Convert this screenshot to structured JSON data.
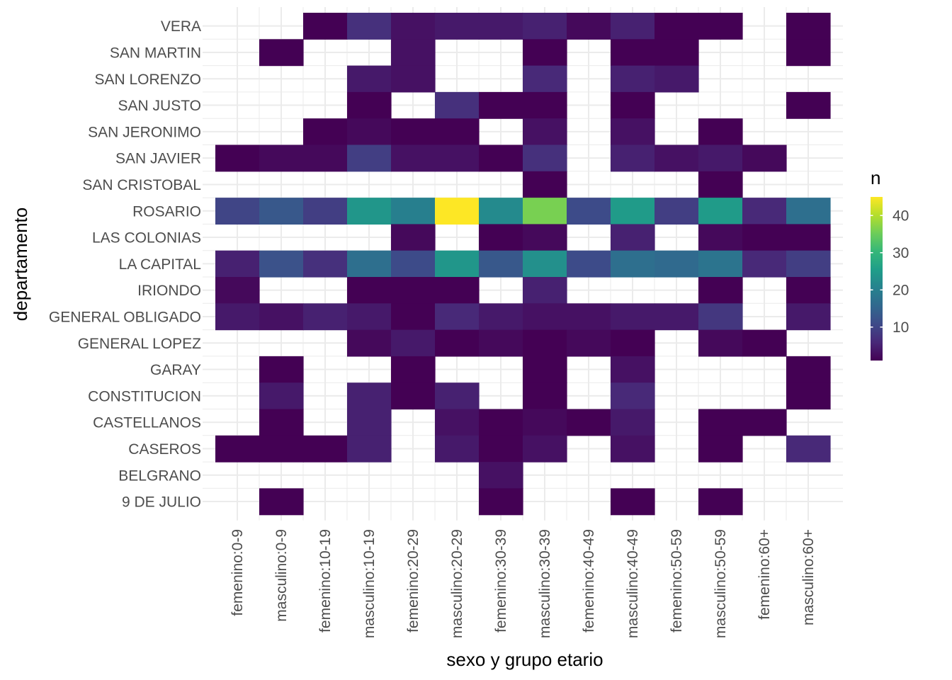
{
  "chart_data": {
    "type": "heatmap",
    "xlabel": "sexo y grupo etario",
    "ylabel": "departamento",
    "x": [
      "femenino:0-9",
      "masculino:0-9",
      "femenino:10-19",
      "masculino:10-19",
      "femenino:20-29",
      "masculino:20-29",
      "femenino:30-39",
      "masculino:30-39",
      "femenino:40-49",
      "masculino:40-49",
      "femenino:50-59",
      "masculino:50-59",
      "femenino:60+",
      "masculino:60+"
    ],
    "y": [
      "VERA",
      "SAN MARTIN",
      "SAN LORENZO",
      "SAN JUSTO",
      "SAN JERONIMO",
      "SAN JAVIER",
      "SAN CRISTOBAL",
      "ROSARIO",
      "LAS COLONIAS",
      "LA CAPITAL",
      "IRIONDO",
      "GENERAL OBLIGADO",
      "GENERAL LOPEZ",
      "GARAY",
      "CONSTITUCION",
      "CASTELLANOS",
      "CASEROS",
      "BELGRANO",
      "9 DE JULIO"
    ],
    "z": [
      [
        null,
        null,
        1,
        7,
        3,
        4,
        4,
        5,
        2,
        5,
        1,
        1,
        null,
        1
      ],
      [
        null,
        1,
        null,
        null,
        3,
        null,
        null,
        1,
        null,
        1,
        1,
        null,
        null,
        1
      ],
      [
        null,
        null,
        null,
        4,
        3,
        null,
        null,
        6,
        null,
        5,
        4,
        null,
        null,
        null
      ],
      [
        null,
        null,
        null,
        1,
        null,
        7,
        1,
        1,
        null,
        1,
        null,
        null,
        null,
        1
      ],
      [
        null,
        null,
        1,
        2,
        1,
        1,
        null,
        3,
        null,
        3,
        null,
        1,
        null,
        null
      ],
      [
        1,
        2,
        2,
        9,
        3,
        3,
        1,
        7,
        null,
        5,
        3,
        4,
        2,
        null
      ],
      [
        null,
        null,
        null,
        null,
        null,
        null,
        null,
        1,
        null,
        null,
        null,
        1,
        null,
        null
      ],
      [
        10,
        13,
        9,
        24,
        20,
        45,
        22,
        36,
        11,
        25,
        9,
        25,
        6,
        17
      ],
      [
        null,
        null,
        null,
        null,
        2,
        null,
        1,
        2,
        null,
        5,
        null,
        2,
        1,
        1
      ],
      [
        5,
        12,
        7,
        17,
        11,
        24,
        13,
        23,
        11,
        17,
        16,
        18,
        6,
        9
      ],
      [
        2,
        null,
        null,
        1,
        1,
        1,
        null,
        5,
        null,
        null,
        null,
        1,
        null,
        1
      ],
      [
        4,
        3,
        5,
        4,
        1,
        6,
        4,
        3,
        3,
        4,
        4,
        8,
        null,
        4
      ],
      [
        null,
        null,
        null,
        2,
        4,
        1,
        2,
        1,
        2,
        1,
        null,
        2,
        1,
        null
      ],
      [
        null,
        1,
        null,
        null,
        1,
        null,
        null,
        1,
        null,
        3,
        null,
        null,
        null,
        1
      ],
      [
        null,
        4,
        null,
        5,
        1,
        5,
        null,
        1,
        null,
        6,
        null,
        null,
        null,
        1
      ],
      [
        null,
        1,
        null,
        5,
        null,
        3,
        1,
        2,
        1,
        4,
        null,
        1,
        1,
        null
      ],
      [
        1,
        1,
        1,
        5,
        null,
        4,
        1,
        3,
        null,
        3,
        null,
        1,
        null,
        6
      ],
      [
        null,
        null,
        null,
        null,
        null,
        null,
        3,
        null,
        null,
        null,
        null,
        null,
        null,
        null
      ],
      [
        null,
        1,
        null,
        null,
        null,
        null,
        1,
        null,
        null,
        1,
        null,
        1,
        null,
        null
      ]
    ],
    "zlim": [
      1,
      45
    ],
    "grid": true,
    "legend": {
      "title": "n",
      "ticks": [
        10,
        20,
        30,
        40
      ],
      "placement": "right"
    },
    "colormap": "viridis",
    "colors": {
      "low": "#440154",
      "mid": "#21908C",
      "high": "#FDE725",
      "grid": "#EBEBEB"
    }
  }
}
